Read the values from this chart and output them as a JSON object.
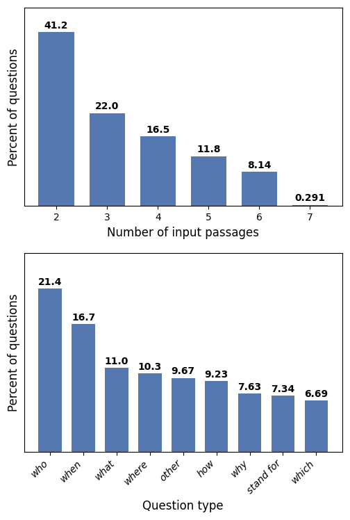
{
  "top_categories": [
    2,
    3,
    4,
    5,
    6,
    7
  ],
  "top_values": [
    41.2,
    22.0,
    16.5,
    11.8,
    8.14,
    0.291
  ],
  "top_labels": [
    "41.2",
    "22.0",
    "16.5",
    "11.8",
    "8.14",
    "0.291"
  ],
  "top_xlabel": "Number of input passages",
  "top_ylabel": "Percent of questions",
  "bot_categories": [
    "who",
    "when",
    "what",
    "where",
    "other",
    "how",
    "why",
    "stand for",
    "which"
  ],
  "bot_values": [
    21.4,
    16.7,
    11.0,
    10.3,
    9.67,
    9.23,
    7.63,
    7.34,
    6.69
  ],
  "bot_labels": [
    "21.4",
    "16.7",
    "11.0",
    "10.3",
    "9.67",
    "9.23",
    "7.63",
    "7.34",
    "6.69"
  ],
  "bot_xlabel": "Question type",
  "bot_ylabel": "Percent of questions",
  "bar_color": "#5578b0",
  "label_fontsize": 10,
  "label_fontweight": "bold",
  "axis_label_fontsize": 12,
  "tick_fontsize": 10,
  "background_color": "#ffffff"
}
